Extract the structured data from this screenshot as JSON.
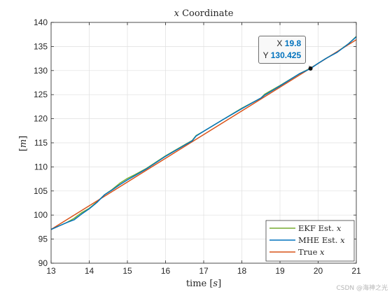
{
  "chart_data": {
    "type": "line",
    "title": "x Coordinate",
    "xlabel": "time [s]",
    "ylabel": "[m]",
    "xlim": [
      13,
      21
    ],
    "ylim": [
      90,
      140
    ],
    "xticks": [
      13,
      14,
      15,
      16,
      17,
      18,
      19,
      20,
      21
    ],
    "yticks": [
      90,
      95,
      100,
      105,
      110,
      115,
      120,
      125,
      130,
      135,
      140
    ],
    "grid": true,
    "legend_position": "bottom-right",
    "series": [
      {
        "name": "EKF Est. x",
        "color": "#77ac30",
        "x": [
          13.0,
          13.2,
          13.4,
          13.6,
          13.8,
          14.0,
          14.2,
          14.4,
          14.6,
          14.8,
          15.0,
          15.2,
          15.5,
          16.0,
          16.5,
          16.7,
          16.8,
          17.0,
          17.5,
          18.0,
          18.5,
          18.6,
          19.0,
          19.5,
          19.8,
          20.0,
          20.2,
          20.5,
          20.8,
          21.0
        ],
        "y": [
          97.0,
          97.7,
          98.4,
          99.3,
          100.5,
          101.4,
          102.7,
          104.2,
          105.3,
          106.6,
          107.6,
          108.4,
          109.7,
          112.3,
          114.6,
          115.5,
          116.5,
          117.4,
          119.8,
          122.2,
          124.3,
          125.1,
          126.9,
          129.3,
          130.5,
          131.5,
          132.5,
          133.9,
          135.6,
          137.1
        ]
      },
      {
        "name": "MHE Est. x",
        "color": "#0072bd",
        "x": [
          13.0,
          13.2,
          13.4,
          13.6,
          13.8,
          14.0,
          14.2,
          14.4,
          14.6,
          14.8,
          15.0,
          15.2,
          15.5,
          16.0,
          16.5,
          16.7,
          16.8,
          17.0,
          17.5,
          18.0,
          18.5,
          18.6,
          19.0,
          19.5,
          19.8,
          20.0,
          20.2,
          20.5,
          20.8,
          21.0
        ],
        "y": [
          97.0,
          97.7,
          98.4,
          99.0,
          100.2,
          101.3,
          102.6,
          104.2,
          105.2,
          106.3,
          107.3,
          108.2,
          109.6,
          112.2,
          114.5,
          115.4,
          116.4,
          117.4,
          119.8,
          122.1,
          124.3,
          124.9,
          126.8,
          129.3,
          130.4,
          131.5,
          132.5,
          133.8,
          135.6,
          137.0
        ]
      },
      {
        "name": "True x",
        "color": "#d95319",
        "x": [
          13.0,
          21.0
        ],
        "y": [
          97.0,
          136.4
        ]
      }
    ],
    "datatip": {
      "x_label": "X",
      "x_value": "19.8",
      "y_label": "Y",
      "y_value": "130.425",
      "x": 19.8,
      "y": 130.425
    }
  },
  "watermark": "CSDN @海神之光"
}
